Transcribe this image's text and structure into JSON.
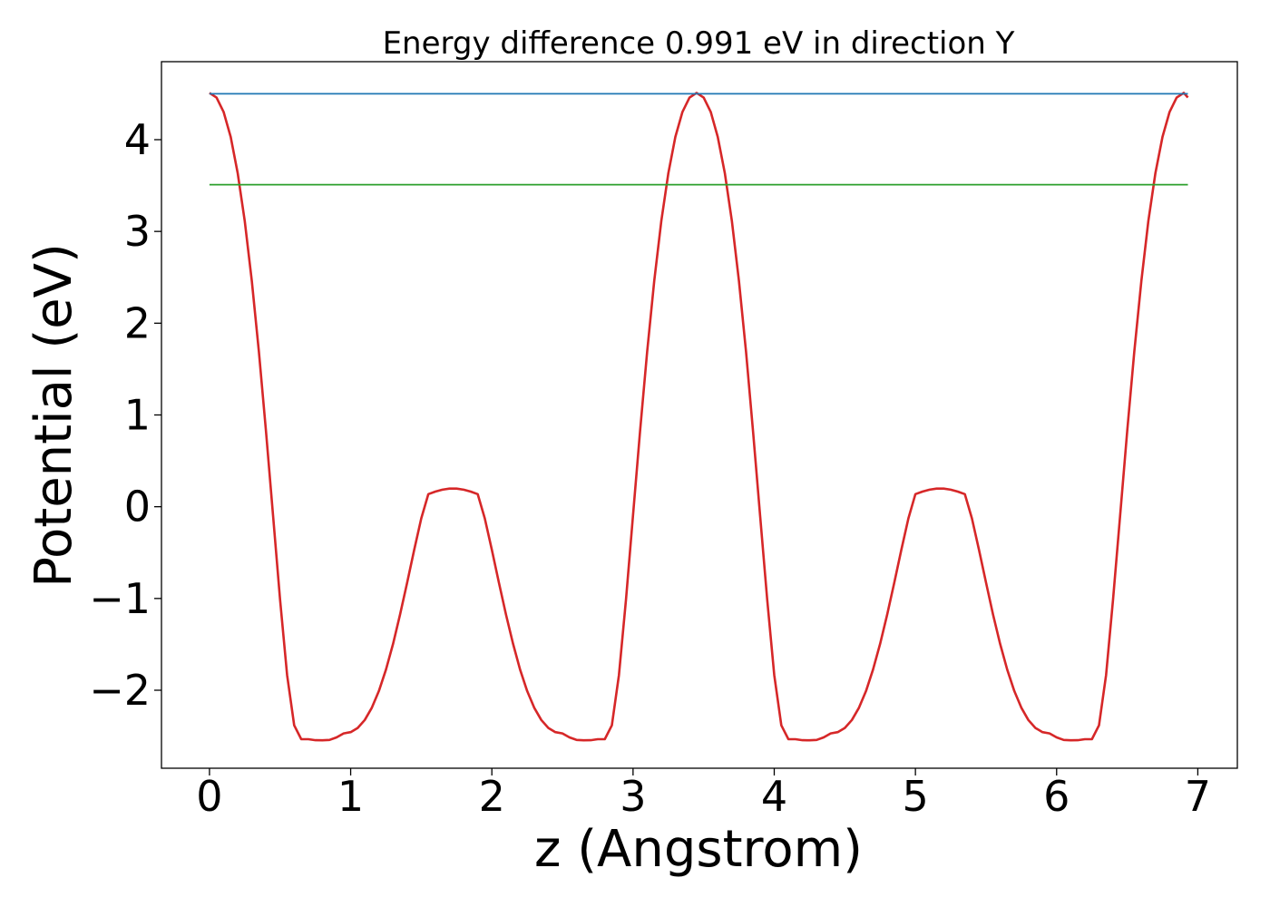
{
  "chart_data": {
    "type": "line",
    "title": "Energy difference 0.991 eV in direction Y",
    "xlabel": "z (Angstrom)",
    "ylabel": "Potential (eV)",
    "xlim": [
      -0.34,
      7.28
    ],
    "ylim": [
      -2.85,
      4.85
    ],
    "xticks": [
      0,
      1,
      2,
      3,
      4,
      5,
      6,
      7
    ],
    "xtick_labels": [
      "0",
      "1",
      "2",
      "3",
      "4",
      "5",
      "6",
      "7"
    ],
    "yticks": [
      -2,
      -1,
      0,
      1,
      2,
      3,
      4
    ],
    "ytick_labels": [
      "−2",
      "−1",
      "0",
      "1",
      "2",
      "3",
      "4"
    ],
    "grid": false,
    "legend": "none",
    "series": [
      {
        "color": "#d62728",
        "x": [
          0.0,
          0.05,
          0.1,
          0.15,
          0.2,
          0.25,
          0.3,
          0.35,
          0.4,
          0.45,
          0.5,
          0.55,
          0.6,
          0.65,
          0.7,
          0.75,
          0.8,
          0.85,
          0.9,
          0.95,
          1.0,
          1.05,
          1.1,
          1.15,
          1.2,
          1.25,
          1.3,
          1.35,
          1.4,
          1.45,
          1.5,
          1.55,
          1.6,
          1.65,
          1.7,
          1.75,
          1.8,
          1.85,
          1.9,
          1.95,
          2.0,
          2.05,
          2.1,
          2.15,
          2.2,
          2.25,
          2.3,
          2.35,
          2.4,
          2.45,
          2.5,
          2.55,
          2.6,
          2.65,
          2.7,
          2.75,
          2.8,
          2.85,
          2.9,
          2.95,
          3.0,
          3.05,
          3.1,
          3.15,
          3.2,
          3.25,
          3.3,
          3.35,
          3.4,
          3.45,
          3.5,
          3.55,
          3.6,
          3.65,
          3.7,
          3.75,
          3.8,
          3.85,
          3.9,
          3.95,
          4.0,
          4.05,
          4.1,
          4.15,
          4.2,
          4.25,
          4.3,
          4.35,
          4.4,
          4.45,
          4.5,
          4.55,
          4.6,
          4.65,
          4.7,
          4.75,
          4.8,
          4.85,
          4.9,
          4.95,
          5.0,
          5.05,
          5.1,
          5.15,
          5.2,
          5.25,
          5.3,
          5.35,
          5.4,
          5.45,
          5.5,
          5.55,
          5.6,
          5.65,
          5.7,
          5.75,
          5.8,
          5.85,
          5.9,
          5.95,
          6.0,
          6.05,
          6.1,
          6.15,
          6.2,
          6.25,
          6.3,
          6.35,
          6.4,
          6.45,
          6.5,
          6.55,
          6.6,
          6.65,
          6.7,
          6.75,
          6.8,
          6.85,
          6.9,
          6.93
        ],
        "y": [
          4.51,
          4.459,
          4.302,
          4.031,
          3.637,
          3.113,
          2.46,
          1.689,
          0.825,
          -0.095,
          -1.009,
          -1.835,
          -2.382,
          -2.534,
          -2.534,
          -2.545,
          -2.546,
          -2.542,
          -2.514,
          -2.47,
          -2.457,
          -2.411,
          -2.324,
          -2.191,
          -2.008,
          -1.775,
          -1.495,
          -1.176,
          -0.829,
          -0.47,
          -0.127,
          0.137,
          0.165,
          0.186,
          0.197,
          0.197,
          0.186,
          0.165,
          0.137,
          -0.127,
          -0.47,
          -0.829,
          -1.176,
          -1.495,
          -1.775,
          -2.008,
          -2.191,
          -2.324,
          -2.411,
          -2.457,
          -2.47,
          -2.514,
          -2.542,
          -2.546,
          -2.545,
          -2.534,
          -2.534,
          -2.382,
          -1.835,
          -1.009,
          -0.095,
          0.825,
          1.689,
          2.46,
          3.113,
          3.637,
          4.031,
          4.302,
          4.459,
          4.51,
          4.459,
          4.302,
          4.031,
          3.637,
          3.113,
          2.46,
          1.689,
          0.825,
          -0.095,
          -1.009,
          -1.835,
          -2.382,
          -2.534,
          -2.534,
          -2.545,
          -2.546,
          -2.542,
          -2.514,
          -2.47,
          -2.457,
          -2.411,
          -2.324,
          -2.191,
          -2.008,
          -1.775,
          -1.495,
          -1.176,
          -0.829,
          -0.47,
          -0.127,
          0.137,
          0.165,
          0.186,
          0.197,
          0.197,
          0.186,
          0.165,
          0.137,
          -0.127,
          -0.47,
          -0.829,
          -1.176,
          -1.495,
          -1.775,
          -2.008,
          -2.191,
          -2.324,
          -2.411,
          -2.457,
          -2.47,
          -2.514,
          -2.542,
          -2.546,
          -2.545,
          -2.534,
          -2.534,
          -2.382,
          -1.835,
          -1.009,
          -0.095,
          0.825,
          1.689,
          2.46,
          3.113,
          3.637,
          4.031,
          4.302,
          4.459,
          4.51,
          4.46
        ]
      },
      {
        "color": "#1f77b4",
        "x": [
          0.0,
          6.93
        ],
        "y": [
          4.5,
          4.5
        ]
      },
      {
        "color": "#2ca02c",
        "x": [
          0.0,
          6.93
        ],
        "y": [
          3.51,
          3.51
        ]
      }
    ]
  }
}
